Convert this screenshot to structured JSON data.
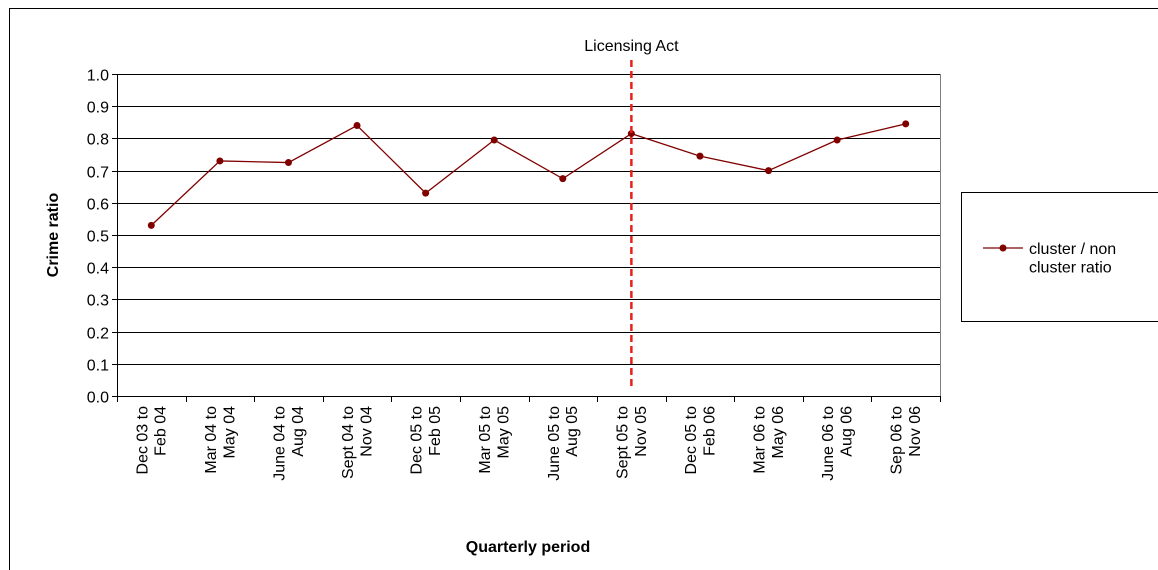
{
  "chart_data": {
    "type": "line",
    "y_label": "Crime ratio",
    "x_label": "Quarterly period",
    "categories": [
      "Dec 03 to Feb 04",
      "Mar 04 to May 04",
      "June 04 to Aug 04",
      "Sept 04 to Nov 04",
      "Dec 05 to Feb 05",
      "Mar 05 to May 05",
      "June 05 to Aug 05",
      "Sept 05 to Nov 05",
      "Dec 05 to Feb 06",
      "Mar 06 to May 06",
      "June 06 to Aug 06",
      "Sep 06 to Nov 06"
    ],
    "series": [
      {
        "name": "cluster / non cluster ratio",
        "color": "#800000",
        "values": [
          0.53,
          0.73,
          0.725,
          0.84,
          0.63,
          0.795,
          0.675,
          0.815,
          0.745,
          0.7,
          0.795,
          0.845
        ]
      }
    ],
    "ylim": [
      0,
      1
    ],
    "yticks": [
      {
        "value": 0,
        "label": "0.0"
      },
      0.1,
      0.2,
      0.3,
      0.4,
      0.5,
      0.6,
      0.7,
      0.8,
      0.9,
      {
        "value": 1,
        "label": "1.0"
      }
    ],
    "grid": true,
    "legend": "right",
    "annotations": [
      {
        "text": "Licensing Act",
        "x": 7.5,
        "color": "#e8201c"
      }
    ]
  }
}
